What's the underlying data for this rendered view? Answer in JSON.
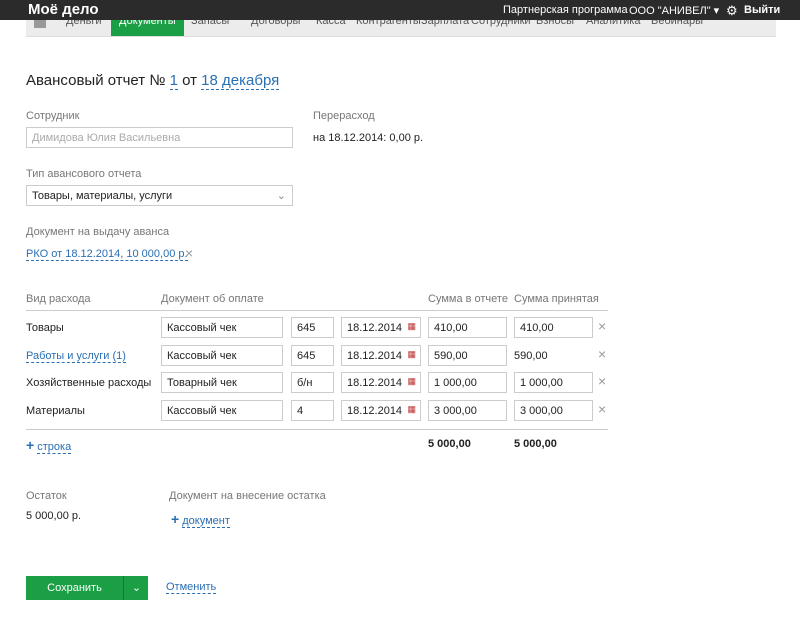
{
  "header": {
    "logo": "Моё дело",
    "partner": "Партнерская программа",
    "company": "ООО \"АНИВЕЛ\"",
    "logout": "Выйти"
  },
  "nav": {
    "tabs": [
      "Деньги",
      "Документы",
      "Запасы",
      "Договоры",
      "Касса",
      "Контрагенты",
      "Зарплата",
      "Сотрудники",
      "Взносы",
      "Аналитика",
      "Вебинары"
    ],
    "active": 1
  },
  "form": {
    "title": {
      "prefix": "Авансовый отчет №",
      "number": "1",
      "from": "от",
      "date": "18 декабря"
    },
    "employee": {
      "label": "Сотрудник",
      "value": "Димидова Юлия Васильевна"
    },
    "overspend": {
      "label": "Перерасход",
      "value": "на 18.12.2014: 0,00 р."
    },
    "report_type": {
      "label": "Тип авансового отчета",
      "value": "Товары, материалы, услуги"
    },
    "advance_doc": {
      "label": "Документ на выдачу аванса",
      "value": "РКО от 18.12.2014, 10 000,00 р."
    }
  },
  "table": {
    "headers": [
      "Вид расхода",
      "Документ об оплате",
      "Сумма в отчете",
      "Сумма принятая"
    ],
    "rows": [
      [
        "Товары",
        "Кассовый чек",
        "645",
        "18.12.2014",
        "410,00",
        "410,00"
      ],
      [
        "Работы и услуги (1)",
        "Кассовый чек",
        "645",
        "18.12.2014",
        "590,00",
        "590,00"
      ],
      [
        "Хозяйственные расходы",
        "Товарный чек",
        "б/н",
        "18.12.2014",
        "1 000,00",
        "1 000,00"
      ],
      [
        "Материалы",
        "Кассовый чек",
        "4",
        "18.12.2014",
        "3 000,00",
        "3 000,00"
      ]
    ],
    "add_row": "строка",
    "total_report": "5 000,00",
    "total_accepted": "5 000,00"
  },
  "balance": {
    "label": "Остаток",
    "value": "5 000,00 р.",
    "doc_label": "Документ на внесение остатка",
    "add_doc": "документ"
  },
  "actions": {
    "save": "Сохранить",
    "cancel": "Отменить"
  }
}
